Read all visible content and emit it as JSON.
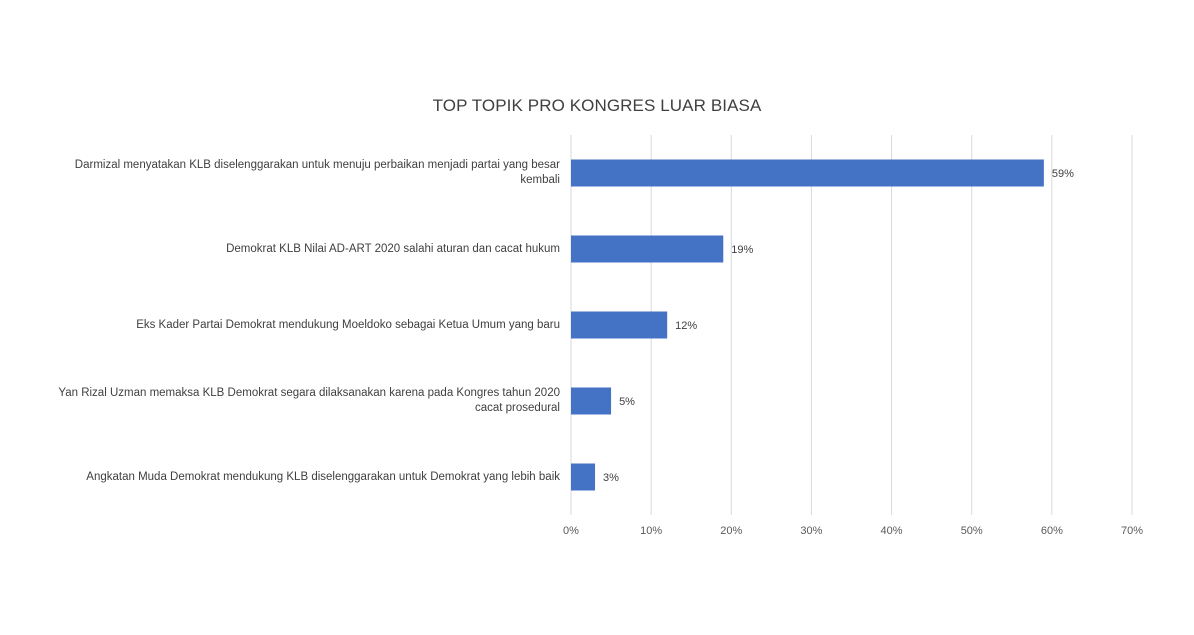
{
  "chart_data": {
    "type": "bar",
    "orientation": "horizontal",
    "title": "TOP TOPIK PRO KONGRES LUAR BIASA",
    "categories": [
      "Darmizal menyatakan KLB diselenggarakan untuk menuju perbaikan menjadi partai yang besar kembali",
      "Demokrat KLB Nilai AD-ART 2020 salahi aturan dan cacat hukum",
      "Eks Kader Partai Demokrat mendukung Moeldoko sebagai Ketua Umum yang baru",
      "Yan Rizal Uzman memaksa KLB Demokrat segara dilaksanakan karena pada Kongres tahun 2020 cacat prosedural",
      "Angkatan Muda Demokrat mendukung KLB diselenggarakan untuk Demokrat yang lebih baik"
    ],
    "values": [
      59,
      19,
      12,
      5,
      3
    ],
    "data_labels": [
      "59%",
      "19%",
      "12%",
      "5%",
      "3%"
    ],
    "xlim": [
      0,
      70
    ],
    "xticks": [
      "0%",
      "10%",
      "20%",
      "30%",
      "40%",
      "50%",
      "60%",
      "70%"
    ],
    "grid": true,
    "legend": "none",
    "colors": {
      "bar": "#4472C4",
      "grid": "#D9D9D9",
      "text": "#404040"
    }
  }
}
